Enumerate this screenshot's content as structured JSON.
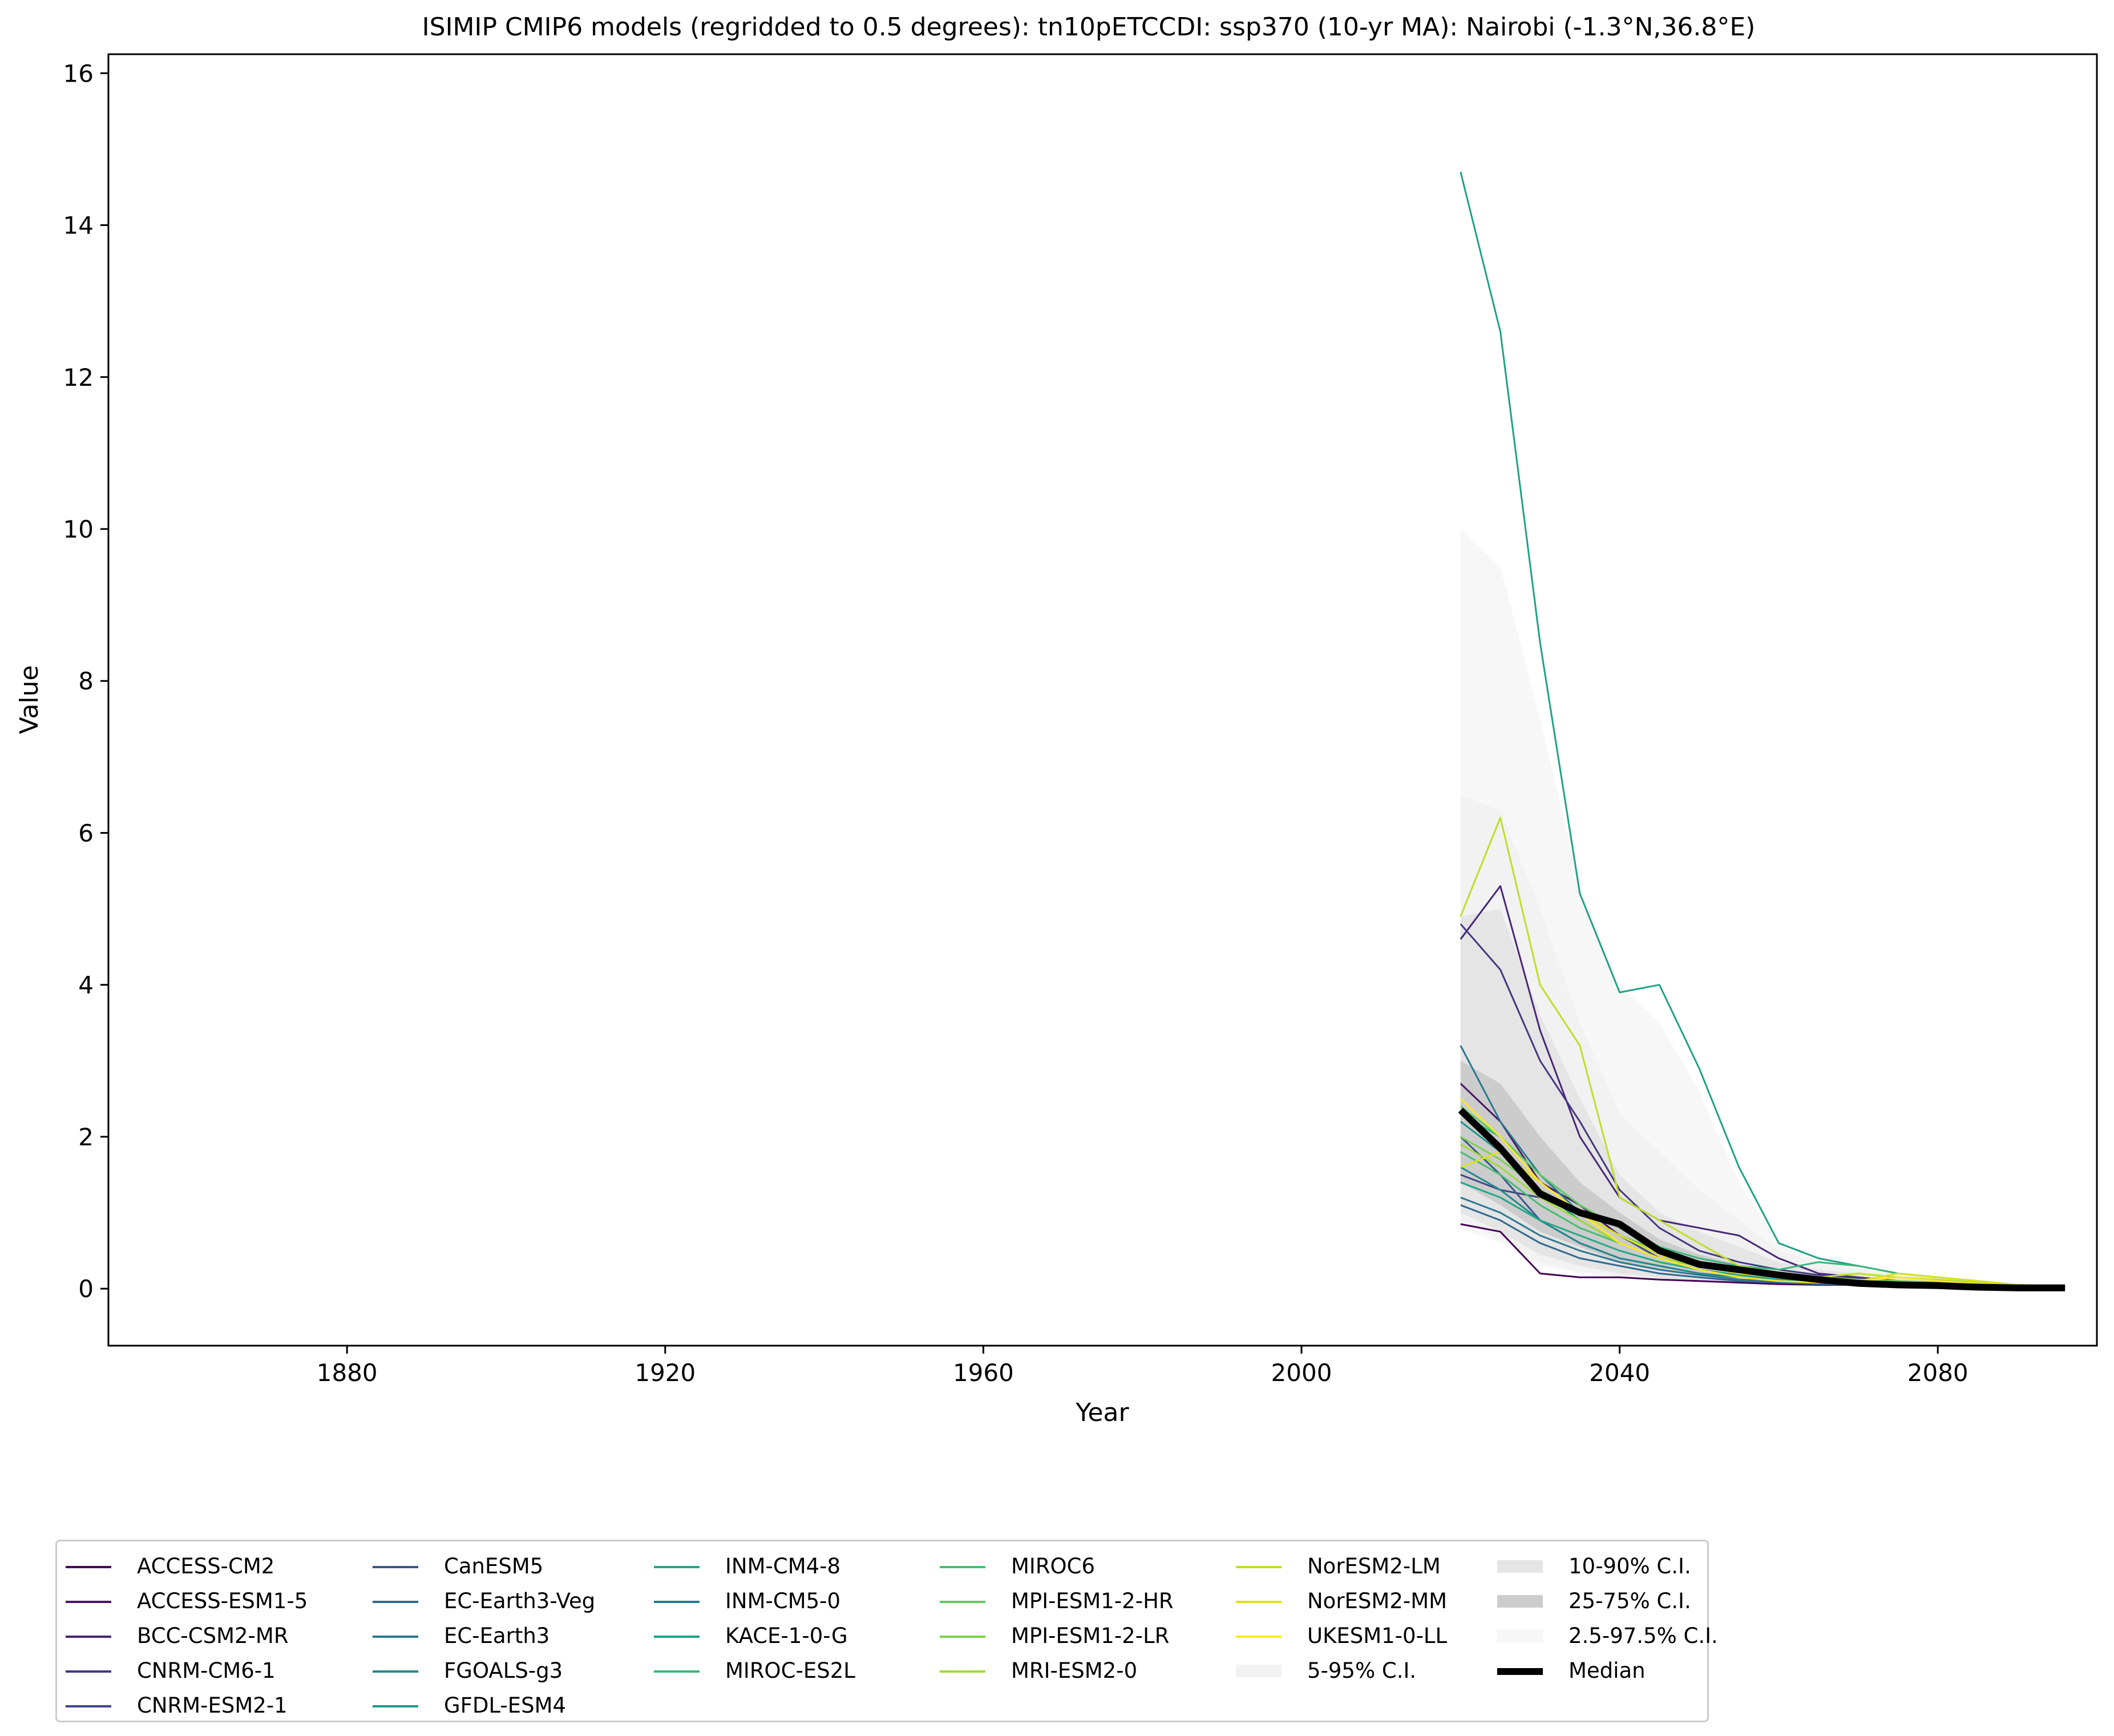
{
  "chart_data": {
    "type": "line",
    "title": "ISIMIP CMIP6 models (regridded to 0.5 degrees): tn10pETCCDI: ssp370 (10-yr MA): Nairobi (-1.3°N,36.8°E)",
    "xlabel": "Year",
    "ylabel": "Value",
    "xlim": [
      1850,
      2100
    ],
    "ylim": [
      -0.75,
      16.25
    ],
    "xticks": [
      1880,
      1920,
      1960,
      2000,
      2040,
      2080
    ],
    "yticks": [
      0,
      2,
      4,
      6,
      8,
      10,
      12,
      14,
      16
    ],
    "grid": false,
    "legend_position": "bottom",
    "x": [
      2020,
      2025,
      2030,
      2035,
      2040,
      2045,
      2050,
      2055,
      2060,
      2065,
      2070,
      2075,
      2080,
      2085,
      2090,
      2096
    ],
    "series": [
      {
        "name": "ACCESS-CM2",
        "color": "#440154",
        "values": [
          0.85,
          0.75,
          0.2,
          0.15,
          0.15,
          0.12,
          0.1,
          0.08,
          0.06,
          0.05,
          0.05,
          0.04,
          0.03,
          0.02,
          0.02,
          0.02
        ]
      },
      {
        "name": "ACCESS-ESM1-5",
        "color": "#481567",
        "values": [
          2.7,
          2.2,
          1.4,
          1.1,
          0.7,
          0.5,
          0.35,
          0.25,
          0.2,
          0.15,
          0.12,
          0.1,
          0.07,
          0.05,
          0.03,
          0.02
        ]
      },
      {
        "name": "BCC-CSM2-MR",
        "color": "#482677",
        "values": [
          4.6,
          5.3,
          3.4,
          2.0,
          1.2,
          0.9,
          0.8,
          0.7,
          0.4,
          0.2,
          0.15,
          0.1,
          0.08,
          0.05,
          0.03,
          0.02
        ]
      },
      {
        "name": "CNRM-CM6-1",
        "color": "#453781",
        "values": [
          4.8,
          4.2,
          3.0,
          2.2,
          1.3,
          0.8,
          0.5,
          0.35,
          0.25,
          0.18,
          0.14,
          0.1,
          0.07,
          0.05,
          0.03,
          0.02
        ]
      },
      {
        "name": "CNRM-ESM2-1",
        "color": "#3f4788",
        "values": [
          1.5,
          1.3,
          1.2,
          1.0,
          0.7,
          0.4,
          0.25,
          0.18,
          0.12,
          0.09,
          0.07,
          0.05,
          0.04,
          0.03,
          0.02,
          0.02
        ]
      },
      {
        "name": "CanESM5",
        "color": "#39568c",
        "values": [
          2.0,
          1.5,
          0.9,
          0.6,
          0.4,
          0.3,
          0.2,
          0.15,
          0.1,
          0.08,
          0.06,
          0.05,
          0.04,
          0.03,
          0.02,
          0.01
        ]
      },
      {
        "name": "EC-Earth3-Veg",
        "color": "#31688e",
        "values": [
          1.1,
          0.9,
          0.6,
          0.4,
          0.3,
          0.2,
          0.15,
          0.1,
          0.08,
          0.06,
          0.05,
          0.04,
          0.03,
          0.02,
          0.02,
          0.01
        ]
      },
      {
        "name": "EC-Earth3",
        "color": "#2a788e",
        "values": [
          1.2,
          1.0,
          0.7,
          0.5,
          0.35,
          0.25,
          0.18,
          0.12,
          0.1,
          0.08,
          0.06,
          0.05,
          0.04,
          0.03,
          0.02,
          0.01
        ]
      },
      {
        "name": "FGOALS-g3",
        "color": "#23888e",
        "values": [
          1.6,
          1.3,
          0.9,
          0.6,
          0.4,
          0.3,
          0.2,
          0.15,
          0.1,
          0.08,
          0.06,
          0.05,
          0.04,
          0.03,
          0.02,
          0.02
        ]
      },
      {
        "name": "GFDL-ESM4",
        "color": "#1f988b",
        "values": [
          2.2,
          1.8,
          1.3,
          0.9,
          0.6,
          0.4,
          0.3,
          0.2,
          0.15,
          0.1,
          0.08,
          0.06,
          0.05,
          0.04,
          0.03,
          0.02
        ]
      },
      {
        "name": "INM-CM4-8",
        "color": "#22a884",
        "values": [
          1.4,
          1.2,
          0.9,
          0.7,
          0.5,
          0.35,
          0.25,
          0.18,
          0.12,
          0.09,
          0.07,
          0.05,
          0.04,
          0.03,
          0.02,
          0.02
        ]
      },
      {
        "name": "INM-CM5-0",
        "color": "#2a788e",
        "values": [
          3.2,
          2.2,
          1.5,
          1.0,
          0.7,
          0.45,
          0.3,
          0.2,
          0.15,
          0.1,
          0.08,
          0.06,
          0.05,
          0.04,
          0.03,
          0.02
        ]
      },
      {
        "name": "KACE-1-0-G",
        "color": "#1fa187",
        "values": [
          14.7,
          12.6,
          8.5,
          5.2,
          3.9,
          4.0,
          2.9,
          1.6,
          0.6,
          0.4,
          0.3,
          0.2,
          0.15,
          0.1,
          0.05,
          0.03
        ]
      },
      {
        "name": "MIROC-ES2L",
        "color": "#35b779",
        "values": [
          2.3,
          2.0,
          1.5,
          1.1,
          0.8,
          0.55,
          0.4,
          0.3,
          0.25,
          0.35,
          0.3,
          0.2,
          0.15,
          0.1,
          0.05,
          0.03
        ]
      },
      {
        "name": "MIROC6",
        "color": "#44bf70",
        "values": [
          1.8,
          1.5,
          1.1,
          0.8,
          0.6,
          0.4,
          0.3,
          0.2,
          0.15,
          0.12,
          0.1,
          0.08,
          0.06,
          0.04,
          0.03,
          0.02
        ]
      },
      {
        "name": "MPI-ESM1-2-HR",
        "color": "#5ec962",
        "values": [
          2.4,
          2.0,
          1.5,
          1.1,
          0.8,
          0.5,
          0.35,
          0.25,
          0.18,
          0.14,
          0.1,
          0.08,
          0.06,
          0.04,
          0.03,
          0.02
        ]
      },
      {
        "name": "MPI-ESM1-2-LR",
        "color": "#7ad151",
        "values": [
          2.0,
          1.7,
          1.3,
          1.0,
          0.7,
          0.5,
          0.35,
          0.25,
          0.2,
          0.15,
          0.12,
          0.1,
          0.08,
          0.06,
          0.04,
          0.02
        ]
      },
      {
        "name": "MRI-ESM2-0",
        "color": "#9fda3a",
        "values": [
          1.9,
          1.6,
          1.2,
          0.9,
          0.6,
          0.4,
          0.3,
          0.22,
          0.16,
          0.12,
          0.09,
          0.07,
          0.05,
          0.04,
          0.03,
          0.02
        ]
      },
      {
        "name": "NorESM2-LM",
        "color": "#bddf26",
        "values": [
          4.9,
          6.2,
          4.0,
          3.2,
          1.2,
          0.9,
          0.6,
          0.3,
          0.2,
          0.15,
          0.2,
          0.15,
          0.12,
          0.08,
          0.05,
          0.03
        ]
      },
      {
        "name": "NorESM2-MM",
        "color": "#dce319",
        "values": [
          1.6,
          1.8,
          1.4,
          1.0,
          0.7,
          0.45,
          0.3,
          0.2,
          0.15,
          0.12,
          0.1,
          0.2,
          0.15,
          0.1,
          0.05,
          0.03
        ]
      },
      {
        "name": "UKESM1-0-LL",
        "color": "#fde725",
        "values": [
          2.5,
          2.0,
          1.4,
          1.0,
          0.6,
          0.4,
          0.25,
          0.15,
          0.1,
          0.08,
          0.1,
          0.15,
          0.1,
          0.06,
          0.04,
          0.02
        ]
      }
    ],
    "bands": [
      {
        "name": "2.5-97.5% C.I.",
        "color": "#f7f7f7",
        "lower": [
          0.8,
          0.6,
          0.3,
          0.2,
          0.15,
          0.1,
          0.08,
          0.06,
          0.05,
          0.04,
          0.03,
          0.02,
          0.02,
          0.01,
          0.01,
          0.0
        ],
        "upper": [
          10.0,
          9.5,
          7.5,
          5.3,
          4.0,
          3.5,
          2.6,
          1.4,
          0.6,
          0.4,
          0.3,
          0.2,
          0.15,
          0.1,
          0.06,
          0.03
        ]
      },
      {
        "name": "5-95% C.I.",
        "color": "#f2f2f2",
        "lower": [
          0.9,
          0.65,
          0.35,
          0.22,
          0.16,
          0.11,
          0.09,
          0.07,
          0.05,
          0.04,
          0.03,
          0.02,
          0.02,
          0.01,
          0.01,
          0.0
        ],
        "upper": [
          6.5,
          6.3,
          5.0,
          3.5,
          2.3,
          1.8,
          1.3,
          0.9,
          0.5,
          0.35,
          0.25,
          0.18,
          0.13,
          0.09,
          0.05,
          0.03
        ]
      },
      {
        "name": "10-90% C.I.",
        "color": "#e5e5e5",
        "lower": [
          1.0,
          0.75,
          0.45,
          0.3,
          0.2,
          0.14,
          0.1,
          0.08,
          0.06,
          0.05,
          0.04,
          0.03,
          0.02,
          0.02,
          0.01,
          0.0
        ],
        "upper": [
          4.9,
          5.0,
          3.6,
          2.5,
          1.5,
          1.0,
          0.75,
          0.55,
          0.35,
          0.25,
          0.2,
          0.15,
          0.11,
          0.08,
          0.05,
          0.03
        ]
      },
      {
        "name": "25-75% C.I.",
        "color": "#cccccc",
        "lower": [
          1.4,
          1.1,
          0.75,
          0.55,
          0.35,
          0.25,
          0.17,
          0.12,
          0.09,
          0.07,
          0.05,
          0.04,
          0.03,
          0.02,
          0.01,
          0.01
        ],
        "upper": [
          3.0,
          2.7,
          2.0,
          1.4,
          1.0,
          0.65,
          0.45,
          0.32,
          0.22,
          0.16,
          0.12,
          0.09,
          0.07,
          0.05,
          0.03,
          0.02
        ]
      }
    ],
    "median": {
      "name": "Median",
      "color": "#000000",
      "values": [
        2.35,
        1.85,
        1.25,
        1.0,
        0.85,
        0.5,
        0.32,
        0.25,
        0.18,
        0.12,
        0.07,
        0.05,
        0.04,
        0.02,
        0.01,
        0.01
      ]
    }
  }
}
